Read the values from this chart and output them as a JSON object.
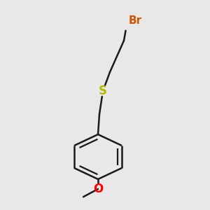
{
  "background_color": "#e8e8e8",
  "bond_color": "#1a1a1a",
  "bond_width": 1.8,
  "S_color": "#b8b800",
  "O_color": "#ff0000",
  "Br_color": "#cc5500",
  "S_label": "S",
  "O_label": "O",
  "Br_label": "Br",
  "font_size_S": 12,
  "font_size_O": 12,
  "font_size_Br": 11,
  "figsize": [
    3.0,
    3.0
  ],
  "dpi": 100,
  "xlim": [
    0,
    300
  ],
  "ylim": [
    0,
    300
  ]
}
